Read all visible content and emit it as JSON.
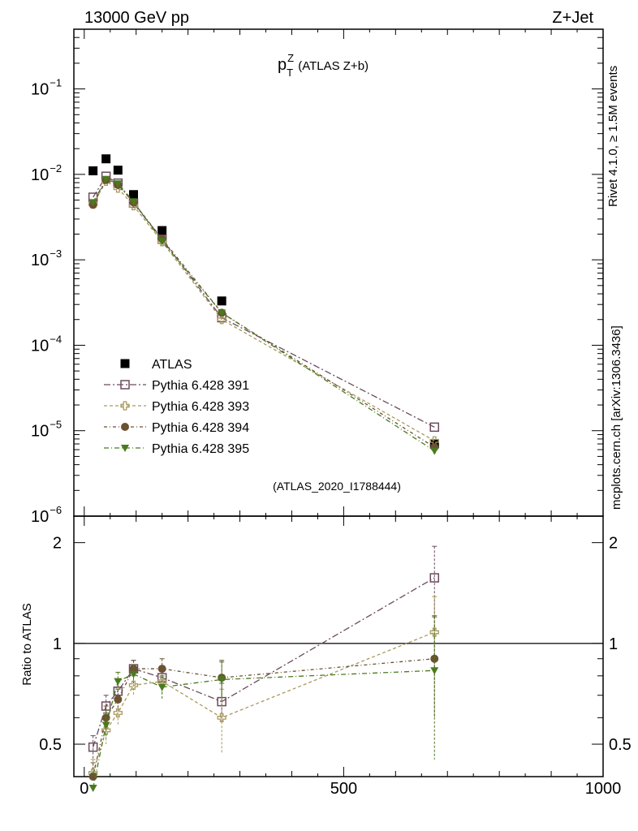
{
  "header": {
    "left": "13000 GeV pp",
    "right": "Z+Jet"
  },
  "title": {
    "main": "p",
    "sup": "Z",
    "sub": "T",
    "rest": " (ATLAS Z+b)"
  },
  "side_labels": {
    "rivet": "Rivet 4.1.0, ≥ 1.5M events",
    "mcplots": "mcplots.cern.ch [arXiv:1306.3436]"
  },
  "analysis_tag": "(ATLAS_2020_I1788444)",
  "chart_data": [
    {
      "type": "scatter",
      "panel": "main",
      "yscale": "log",
      "xlim": [
        -20,
        1000
      ],
      "ylim": [
        1e-06,
        0.5
      ],
      "yticks": [
        {
          "base": "10",
          "exp": "−6",
          "value": 1e-06
        },
        {
          "base": "10",
          "exp": "−5",
          "value": 1e-05
        },
        {
          "base": "10",
          "exp": "−4",
          "value": 0.0001
        },
        {
          "base": "10",
          "exp": "−3",
          "value": 0.001
        },
        {
          "base": "10",
          "exp": "−2",
          "value": 0.01
        },
        {
          "base": "10",
          "exp": "−1",
          "value": 0.1
        }
      ],
      "x": [
        17,
        42,
        65,
        95,
        150,
        265,
        675
      ],
      "series": [
        {
          "name": "ATLAS",
          "marker": "filled-square",
          "color": "#000000",
          "values": [
            0.011,
            0.0152,
            0.0112,
            0.0058,
            0.0022,
            0.00033,
            7e-06
          ]
        },
        {
          "name": "Pythia 6.428 391",
          "marker": "open-square",
          "color": "#6b4a5e",
          "dash": "8,3,2,3",
          "values": [
            0.0054,
            0.0095,
            0.0079,
            0.0046,
            0.00174,
            0.00021,
            1.1e-05
          ]
        },
        {
          "name": "Pythia 6.428 393",
          "marker": "open-cross",
          "color": "#a89a5c",
          "dash": "4,3",
          "values": [
            0.0045,
            0.0083,
            0.0069,
            0.0043,
            0.00163,
            0.0002,
            7.6e-06
          ]
        },
        {
          "name": "Pythia 6.428 394",
          "marker": "filled-circle",
          "color": "#6b5232",
          "dash": "4,3,1,3",
          "values": [
            0.0044,
            0.0086,
            0.0075,
            0.0047,
            0.00176,
            0.00024,
            6.4e-06
          ]
        },
        {
          "name": "Pythia 6.428 395",
          "marker": "filled-triangle",
          "color": "#4a7a1e",
          "dash": "6,3,1,3",
          "values": [
            0.0047,
            0.0088,
            0.0078,
            0.0048,
            0.00165,
            0.00024,
            5.8e-06
          ]
        }
      ]
    },
    {
      "type": "scatter",
      "panel": "ratio",
      "yscale": "log",
      "ylabel": "Ratio to ATLAS",
      "xlim": [
        -20,
        1000
      ],
      "ylim": [
        0.4,
        2.4
      ],
      "reference_line": 1,
      "yticks": [
        {
          "label": "0.5",
          "value": 0.5
        },
        {
          "label": "1",
          "value": 1
        },
        {
          "label": "2",
          "value": 2
        }
      ],
      "xticks": [
        {
          "label": "0",
          "value": 0
        },
        {
          "label": "500",
          "value": 500
        },
        {
          "label": "1000",
          "value": 1000
        }
      ],
      "x": [
        17,
        42,
        65,
        95,
        150,
        265,
        675
      ],
      "series": [
        {
          "name": "Pythia 6.428 391",
          "values": [
            0.49,
            0.65,
            0.72,
            0.84,
            0.79,
            0.67,
            1.57
          ],
          "err": [
            0.04,
            0.05,
            0.05,
            0.05,
            0.06,
            0.09,
            0.38
          ]
        },
        {
          "name": "Pythia 6.428 393",
          "values": [
            0.41,
            0.55,
            0.62,
            0.75,
            0.77,
            0.6,
            1.08
          ],
          "err": [
            0.04,
            0.05,
            0.05,
            0.05,
            0.06,
            0.13,
            0.3
          ]
        },
        {
          "name": "Pythia 6.428 394",
          "values": [
            0.4,
            0.6,
            0.68,
            0.84,
            0.84,
            0.79,
            0.9
          ],
          "err": [
            0.04,
            0.05,
            0.05,
            0.05,
            0.06,
            0.1,
            0.3
          ]
        },
        {
          "name": "Pythia 6.428 395",
          "values": [
            0.37,
            0.57,
            0.77,
            0.81,
            0.74,
            0.78,
            0.83
          ],
          "err": [
            0.04,
            0.05,
            0.05,
            0.05,
            0.06,
            0.1,
            0.38
          ]
        }
      ]
    }
  ]
}
